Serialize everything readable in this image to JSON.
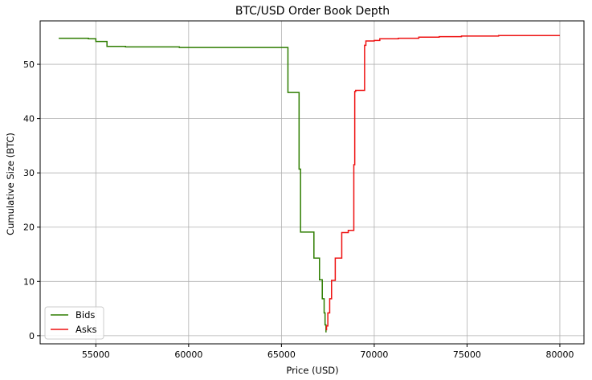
{
  "chart_data": {
    "type": "line",
    "title": "BTC/USD Order Book Depth",
    "xlabel": "Price (USD)",
    "ylabel": "Cumulative Size (BTC)",
    "xlim": [
      52000,
      81300
    ],
    "ylim": [
      -1.5,
      58
    ],
    "x_ticks": [
      55000,
      60000,
      65000,
      70000,
      75000,
      80000
    ],
    "y_ticks": [
      0,
      10,
      20,
      30,
      40,
      50
    ],
    "grid": true,
    "legend_position": "lower-left",
    "series": [
      {
        "name": "Bids",
        "color": "#2e7d00",
        "points": [
          [
            53000,
            54.8
          ],
          [
            54600,
            54.8
          ],
          [
            54600,
            54.7
          ],
          [
            55000,
            54.7
          ],
          [
            55000,
            54.2
          ],
          [
            55600,
            54.2
          ],
          [
            55600,
            53.3
          ],
          [
            56600,
            53.3
          ],
          [
            56600,
            53.2
          ],
          [
            59500,
            53.2
          ],
          [
            59500,
            53.1
          ],
          [
            65350,
            53.1
          ],
          [
            65350,
            44.8
          ],
          [
            65950,
            44.8
          ],
          [
            65950,
            30.7
          ],
          [
            66030,
            30.7
          ],
          [
            66030,
            19.1
          ],
          [
            66750,
            19.1
          ],
          [
            66750,
            14.3
          ],
          [
            67050,
            14.3
          ],
          [
            67050,
            10.3
          ],
          [
            67200,
            10.3
          ],
          [
            67200,
            6.8
          ],
          [
            67300,
            6.8
          ],
          [
            67300,
            4.2
          ],
          [
            67350,
            4.2
          ],
          [
            67350,
            2.0
          ],
          [
            67400,
            2.0
          ],
          [
            67400,
            0.6
          ]
        ]
      },
      {
        "name": "Asks",
        "color": "#ee1111",
        "points": [
          [
            67430,
            1.0
          ],
          [
            67430,
            1.8
          ],
          [
            67500,
            1.8
          ],
          [
            67500,
            4.2
          ],
          [
            67600,
            4.2
          ],
          [
            67600,
            6.8
          ],
          [
            67700,
            6.8
          ],
          [
            67700,
            10.2
          ],
          [
            67900,
            10.2
          ],
          [
            67900,
            14.3
          ],
          [
            68250,
            14.3
          ],
          [
            68250,
            19.0
          ],
          [
            68600,
            19.0
          ],
          [
            68600,
            19.4
          ],
          [
            68900,
            19.4
          ],
          [
            68900,
            31.5
          ],
          [
            68950,
            31.5
          ],
          [
            68950,
            45.0
          ],
          [
            69000,
            45.0
          ],
          [
            69000,
            45.2
          ],
          [
            69480,
            45.2
          ],
          [
            69480,
            53.5
          ],
          [
            69550,
            53.5
          ],
          [
            69550,
            54.3
          ],
          [
            70000,
            54.3
          ],
          [
            70000,
            54.4
          ],
          [
            70300,
            54.4
          ],
          [
            70300,
            54.7
          ],
          [
            71300,
            54.7
          ],
          [
            71300,
            54.8
          ],
          [
            72400,
            54.8
          ],
          [
            72400,
            55.0
          ],
          [
            73500,
            55.0
          ],
          [
            73500,
            55.1
          ],
          [
            74700,
            55.1
          ],
          [
            74700,
            55.2
          ],
          [
            76700,
            55.2
          ],
          [
            76700,
            55.3
          ],
          [
            80000,
            55.3
          ]
        ]
      }
    ]
  }
}
